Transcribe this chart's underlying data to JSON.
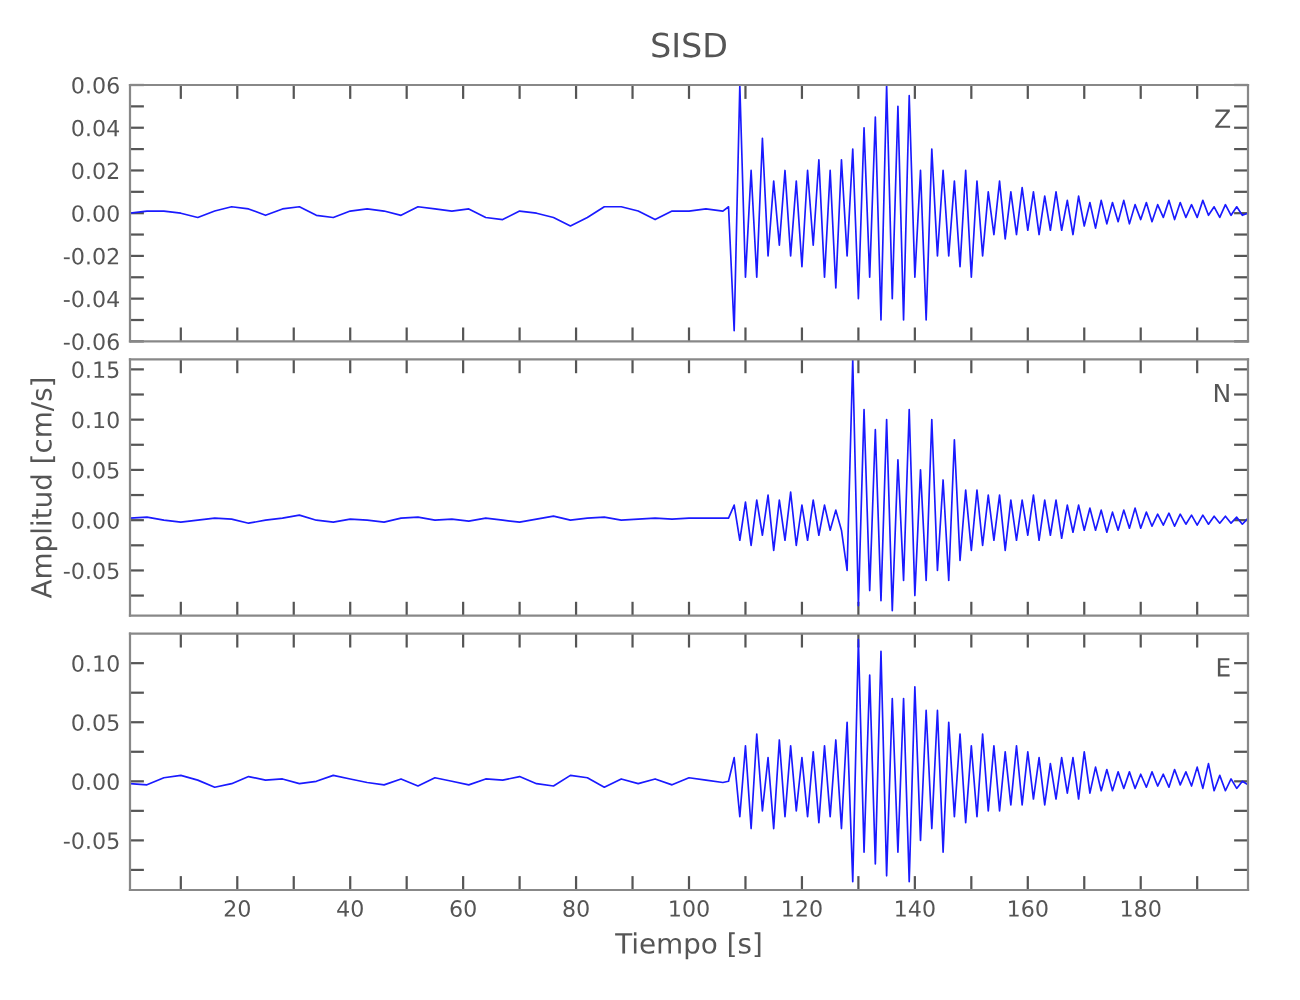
{
  "chart_data": [
    {
      "type": "line",
      "title": "SISD",
      "annotations": [
        "Z"
      ],
      "tick_labels": "y",
      "grid": false,
      "x": [
        1,
        4,
        7,
        10,
        13,
        16,
        19,
        22,
        25,
        28,
        31,
        34,
        37,
        40,
        43,
        46,
        49,
        52,
        55,
        58,
        61,
        64,
        67,
        70,
        73,
        76,
        79,
        82,
        85,
        88,
        91,
        94,
        97,
        100,
        103,
        106,
        107,
        108,
        109,
        110,
        111,
        112,
        113,
        114,
        115,
        116,
        117,
        118,
        119,
        120,
        121,
        122,
        123,
        124,
        125,
        126,
        127,
        128,
        129,
        130,
        131,
        132,
        133,
        134,
        135,
        136,
        137,
        138,
        139,
        140,
        141,
        142,
        143,
        144,
        145,
        146,
        147,
        148,
        149,
        150,
        151,
        152,
        153,
        154,
        155,
        156,
        157,
        158,
        159,
        160,
        161,
        162,
        163,
        164,
        165,
        166,
        167,
        168,
        169,
        170,
        171,
        172,
        173,
        174,
        175,
        176,
        177,
        178,
        179,
        180,
        181,
        182,
        183,
        184,
        185,
        186,
        187,
        188,
        189,
        190,
        191,
        192,
        193,
        194,
        195,
        196,
        197,
        198,
        199
      ],
      "series": [
        {
          "color": "#1a1aff",
          "values": [
            0,
            0.001,
            0.001,
            0,
            -0.002,
            0.001,
            0.003,
            0.002,
            -0.001,
            0.002,
            0.003,
            -0.001,
            -0.002,
            0.001,
            0.002,
            0.001,
            -0.001,
            0.003,
            0.002,
            0.001,
            0.002,
            -0.002,
            -0.003,
            0.001,
            0,
            -0.002,
            -0.006,
            -0.002,
            0.003,
            0.003,
            0.001,
            -0.003,
            0.001,
            0.001,
            0.002,
            0.001,
            0.003,
            -0.055,
            0.06,
            -0.03,
            0.02,
            -0.03,
            0.035,
            -0.02,
            0.015,
            -0.015,
            0.02,
            -0.02,
            0.015,
            -0.025,
            0.02,
            -0.015,
            0.025,
            -0.03,
            0.02,
            -0.035,
            0.025,
            -0.02,
            0.03,
            -0.04,
            0.04,
            -0.03,
            0.045,
            -0.05,
            0.06,
            -0.04,
            0.05,
            -0.05,
            0.055,
            -0.03,
            0.02,
            -0.05,
            0.03,
            -0.02,
            0.02,
            -0.02,
            0.015,
            -0.025,
            0.02,
            -0.03,
            0.015,
            -0.02,
            0.01,
            -0.01,
            0.015,
            -0.012,
            0.01,
            -0.01,
            0.012,
            -0.008,
            0.01,
            -0.01,
            0.008,
            -0.008,
            0.01,
            -0.008,
            0.006,
            -0.01,
            0.008,
            -0.006,
            0.005,
            -0.007,
            0.006,
            -0.005,
            0.005,
            -0.004,
            0.006,
            -0.005,
            0.004,
            -0.003,
            0.005,
            -0.004,
            0.004,
            -0.002,
            0.006,
            -0.003,
            0.005,
            -0.002,
            0.004,
            -0.002,
            0.006,
            -0.001,
            0.003,
            -0.002,
            0.004,
            -0.001,
            0.003,
            -0.001,
            0
          ]
        }
      ],
      "xlim": [
        1,
        199
      ],
      "xticks": [
        {
          "value": 10,
          "label": null
        },
        20,
        {
          "value": 30,
          "label": null
        },
        40,
        {
          "value": 50,
          "label": null
        },
        60,
        {
          "value": 70,
          "label": null
        },
        80,
        {
          "value": 90,
          "label": null
        },
        100,
        {
          "value": 110,
          "label": null
        },
        120,
        {
          "value": 130,
          "label": null
        },
        140,
        {
          "value": 150,
          "label": null
        },
        160,
        {
          "value": 170,
          "label": null
        },
        180,
        {
          "value": 190,
          "label": null
        }
      ],
      "ylim": [
        -0.06,
        0.06
      ],
      "yticks": [
        {
          "value": -0.06,
          "label": "-0.06"
        },
        {
          "value": -0.05,
          "label": null
        },
        {
          "value": -0.04,
          "label": "-0.04"
        },
        {
          "value": -0.03,
          "label": null
        },
        {
          "value": -0.02,
          "label": "-0.02"
        },
        {
          "value": -0.01,
          "label": null
        },
        {
          "value": 0,
          "label": "0.00"
        },
        {
          "value": 0.01,
          "label": null
        },
        {
          "value": 0.02,
          "label": "0.02"
        },
        {
          "value": 0.03,
          "label": null
        },
        {
          "value": 0.04,
          "label": "0.04"
        },
        {
          "value": 0.05,
          "label": null
        },
        {
          "value": 0.06,
          "label": "0.06"
        }
      ]
    },
    {
      "type": "line",
      "ylabel": "Amplitud [cm/s]",
      "annotations": [
        "N"
      ],
      "tick_labels": "y",
      "grid": false,
      "x": [
        1,
        4,
        7,
        10,
        13,
        16,
        19,
        22,
        25,
        28,
        31,
        34,
        37,
        40,
        43,
        46,
        49,
        52,
        55,
        58,
        61,
        64,
        67,
        70,
        73,
        76,
        79,
        82,
        85,
        88,
        91,
        94,
        97,
        100,
        103,
        106,
        107,
        108,
        109,
        110,
        111,
        112,
        113,
        114,
        115,
        116,
        117,
        118,
        119,
        120,
        121,
        122,
        123,
        124,
        125,
        126,
        127,
        128,
        129,
        130,
        131,
        132,
        133,
        134,
        135,
        136,
        137,
        138,
        139,
        140,
        141,
        142,
        143,
        144,
        145,
        146,
        147,
        148,
        149,
        150,
        151,
        152,
        153,
        154,
        155,
        156,
        157,
        158,
        159,
        160,
        161,
        162,
        163,
        164,
        165,
        166,
        167,
        168,
        169,
        170,
        171,
        172,
        173,
        174,
        175,
        176,
        177,
        178,
        179,
        180,
        181,
        182,
        183,
        184,
        185,
        186,
        187,
        188,
        189,
        190,
        191,
        192,
        193,
        194,
        195,
        196,
        197,
        198,
        199
      ],
      "series": [
        {
          "color": "#1a1aff",
          "values": [
            0.002,
            0.003,
            0,
            -0.002,
            0,
            0.002,
            0.001,
            -0.003,
            0,
            0.002,
            0.005,
            0,
            -0.002,
            0.001,
            0,
            -0.002,
            0.002,
            0.003,
            0,
            0.001,
            -0.001,
            0.002,
            0,
            -0.002,
            0.001,
            0.004,
            0,
            0.002,
            0.003,
            0,
            0.001,
            0.002,
            0.001,
            0.002,
            0.002,
            0.002,
            0.002,
            0.015,
            -0.02,
            0.018,
            -0.025,
            0.02,
            -0.015,
            0.025,
            -0.03,
            0.02,
            -0.02,
            0.028,
            -0.025,
            0.015,
            -0.02,
            0.02,
            -0.015,
            0.015,
            -0.01,
            0.01,
            -0.01,
            -0.05,
            0.16,
            -0.085,
            0.11,
            -0.07,
            0.09,
            -0.08,
            0.1,
            -0.09,
            0.06,
            -0.06,
            0.11,
            -0.075,
            0.05,
            -0.06,
            0.1,
            -0.05,
            0.04,
            -0.06,
            0.08,
            -0.04,
            0.03,
            -0.03,
            0.03,
            -0.025,
            0.025,
            -0.02,
            0.025,
            -0.03,
            0.02,
            -0.02,
            0.02,
            -0.015,
            0.025,
            -0.02,
            0.02,
            -0.015,
            0.02,
            -0.018,
            0.015,
            -0.012,
            0.015,
            -0.01,
            0.012,
            -0.01,
            0.01,
            -0.012,
            0.008,
            -0.01,
            0.01,
            -0.008,
            0.012,
            -0.008,
            0.008,
            -0.006,
            0.006,
            -0.005,
            0.007,
            -0.006,
            0.006,
            -0.004,
            0.005,
            -0.005,
            0.005,
            -0.004,
            0.004,
            -0.003,
            0.004,
            -0.003,
            0.003,
            -0.004,
            0.002
          ]
        }
      ],
      "xlim": [
        1,
        199
      ],
      "xticks": [
        {
          "value": 10,
          "label": null
        },
        20,
        {
          "value": 30,
          "label": null
        },
        40,
        {
          "value": 50,
          "label": null
        },
        60,
        {
          "value": 70,
          "label": null
        },
        80,
        {
          "value": 90,
          "label": null
        },
        100,
        {
          "value": 110,
          "label": null
        },
        120,
        {
          "value": 130,
          "label": null
        },
        140,
        {
          "value": 150,
          "label": null
        },
        160,
        {
          "value": 170,
          "label": null
        },
        180,
        {
          "value": 190,
          "label": null
        }
      ],
      "ylim": [
        -0.095,
        0.16
      ],
      "yticks": [
        {
          "value": -0.075,
          "label": null
        },
        {
          "value": -0.05,
          "label": "-0.05"
        },
        {
          "value": -0.025,
          "label": null
        },
        {
          "value": 0,
          "label": "0.00"
        },
        {
          "value": 0.025,
          "label": null
        },
        {
          "value": 0.05,
          "label": "0.05"
        },
        {
          "value": 0.075,
          "label": null
        },
        {
          "value": 0.1,
          "label": "0.10"
        },
        {
          "value": 0.125,
          "label": null
        },
        {
          "value": 0.15,
          "label": "0.15"
        }
      ]
    },
    {
      "type": "line",
      "xlabel": "Tiempo [s]",
      "annotations": [
        "E"
      ],
      "grid": false,
      "x": [
        1,
        4,
        7,
        10,
        13,
        16,
        19,
        22,
        25,
        28,
        31,
        34,
        37,
        40,
        43,
        46,
        49,
        52,
        55,
        58,
        61,
        64,
        67,
        70,
        73,
        76,
        79,
        82,
        85,
        88,
        91,
        94,
        97,
        100,
        103,
        106,
        107,
        108,
        109,
        110,
        111,
        112,
        113,
        114,
        115,
        116,
        117,
        118,
        119,
        120,
        121,
        122,
        123,
        124,
        125,
        126,
        127,
        128,
        129,
        130,
        131,
        132,
        133,
        134,
        135,
        136,
        137,
        138,
        139,
        140,
        141,
        142,
        143,
        144,
        145,
        146,
        147,
        148,
        149,
        150,
        151,
        152,
        153,
        154,
        155,
        156,
        157,
        158,
        159,
        160,
        161,
        162,
        163,
        164,
        165,
        166,
        167,
        168,
        169,
        170,
        171,
        172,
        173,
        174,
        175,
        176,
        177,
        178,
        179,
        180,
        181,
        182,
        183,
        184,
        185,
        186,
        187,
        188,
        189,
        190,
        191,
        192,
        193,
        194,
        195,
        196,
        197,
        198,
        199
      ],
      "series": [
        {
          "color": "#1a1aff",
          "values": [
            -0.002,
            -0.003,
            0.003,
            0.005,
            0.001,
            -0.005,
            -0.002,
            0.004,
            0.001,
            0.002,
            -0.002,
            0,
            0.005,
            0.002,
            -0.001,
            -0.003,
            0.002,
            -0.004,
            0.003,
            0,
            -0.003,
            0.002,
            0.001,
            0.004,
            -0.002,
            -0.004,
            0.005,
            0.003,
            -0.005,
            0.002,
            -0.002,
            0.002,
            -0.003,
            0.003,
            0.001,
            -0.001,
            0,
            0.02,
            -0.03,
            0.03,
            -0.04,
            0.04,
            -0.025,
            0.02,
            -0.04,
            0.035,
            -0.03,
            0.03,
            -0.025,
            0.02,
            -0.03,
            0.025,
            -0.035,
            0.03,
            -0.03,
            0.035,
            -0.04,
            0.05,
            -0.085,
            0.12,
            -0.06,
            0.09,
            -0.07,
            0.11,
            -0.08,
            0.07,
            -0.06,
            0.07,
            -0.085,
            0.08,
            -0.05,
            0.06,
            -0.04,
            0.06,
            -0.06,
            0.05,
            -0.03,
            0.04,
            -0.035,
            0.03,
            -0.03,
            0.04,
            -0.025,
            0.03,
            -0.025,
            0.025,
            -0.02,
            0.03,
            -0.02,
            0.025,
            -0.015,
            0.02,
            -0.02,
            0.015,
            -0.015,
            0.02,
            -0.01,
            0.02,
            -0.015,
            0.025,
            -0.01,
            0.012,
            -0.008,
            0.01,
            -0.008,
            0.008,
            -0.006,
            0.008,
            -0.006,
            0.006,
            -0.005,
            0.008,
            -0.004,
            0.006,
            -0.005,
            0.01,
            -0.003,
            0.008,
            -0.004,
            0.012,
            -0.006,
            0.015,
            -0.008,
            0.005,
            -0.008,
            0.002,
            -0.006,
            0,
            -0.003
          ]
        }
      ],
      "xlim": [
        1,
        199
      ],
      "xticks": [
        {
          "value": 10,
          "label": null
        },
        20,
        {
          "value": 30,
          "label": null
        },
        40,
        {
          "value": 50,
          "label": null
        },
        60,
        {
          "value": 70,
          "label": null
        },
        80,
        {
          "value": 90,
          "label": null
        },
        100,
        {
          "value": 110,
          "label": null
        },
        120,
        {
          "value": 130,
          "label": null
        },
        140,
        {
          "value": 150,
          "label": null
        },
        160,
        {
          "value": 170,
          "label": null
        },
        180,
        {
          "value": 190,
          "label": null
        }
      ],
      "ylim": [
        -0.092,
        0.125
      ],
      "yticks": [
        {
          "value": -0.075,
          "label": null
        },
        {
          "value": -0.05,
          "label": "-0.05"
        },
        {
          "value": -0.025,
          "label": null
        },
        {
          "value": 0,
          "label": "0.00"
        },
        {
          "value": 0.025,
          "label": null
        },
        {
          "value": 0.05,
          "label": "0.05"
        },
        {
          "value": 0.075,
          "label": null
        },
        {
          "value": 0.1,
          "label": "0.10"
        }
      ]
    }
  ]
}
